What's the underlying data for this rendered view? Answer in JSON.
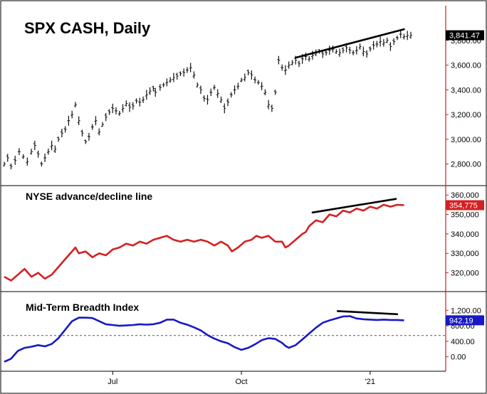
{
  "chart_data": [
    {
      "type": "line",
      "title": "SPX CASH, Daily",
      "y_ticks": [
        "3,800.00",
        "3,600.00",
        "3,400.00",
        "3,200.00",
        "3,000.00",
        "2,800.00"
      ],
      "y_tick_values": [
        3800,
        3600,
        3400,
        3200,
        3000,
        2800
      ],
      "ylim": [
        2700,
        4000
      ],
      "last_value_label": "3,841.47",
      "last_value": 3841.47,
      "style": "ohlc-bars",
      "series": [
        {
          "x": [
            0,
            5,
            10,
            16,
            22,
            28,
            34,
            40,
            45,
            50,
            55,
            60,
            65,
            70,
            75,
            80,
            85,
            90,
            95,
            100,
            105,
            110,
            115,
            120,
            125,
            130,
            135,
            140,
            145,
            150,
            155,
            160,
            165,
            170,
            175,
            180,
            185,
            190,
            195,
            200,
            205,
            210,
            215,
            220,
            223,
            230,
            235,
            240,
            245,
            250,
            255,
            260,
            265,
            270,
            275,
            280,
            285,
            290,
            295,
            300,
            305,
            310,
            315,
            320,
            325,
            330,
            335,
            340,
            345,
            350,
            355,
            360,
            365,
            370,
            375,
            380,
            385,
            390,
            395,
            400,
            405,
            410,
            415,
            420,
            425,
            430,
            435,
            440,
            445,
            450,
            455,
            460,
            465,
            470,
            475,
            480,
            485,
            490,
            495,
            500,
            505,
            510,
            515,
            520,
            525,
            530,
            535,
            540,
            545,
            550,
            555,
            560,
            565,
            570,
            575,
            580,
            585,
            590,
            595,
            600
          ],
          "values": [
            2800,
            2850,
            2780,
            2830,
            2900,
            2860,
            2820,
            2900,
            2950,
            2880,
            2800,
            2850,
            2900,
            2950,
            2920,
            3000,
            3050,
            3080,
            3150,
            3200,
            3280,
            3150,
            3050,
            2980,
            3020,
            3100,
            3150,
            3060,
            3120,
            3180,
            3220,
            3250,
            3230,
            3210,
            3250,
            3290,
            3260,
            3270,
            3310,
            3300,
            3320,
            3360,
            3390,
            3410,
            3380,
            3420,
            3440,
            3460,
            3480,
            3500,
            3510,
            3530,
            3540,
            3560,
            3580,
            3520,
            3440,
            3400,
            3330,
            3320,
            3380,
            3420,
            3370,
            3320,
            3250,
            3300,
            3360,
            3400,
            3430,
            3480,
            3500,
            3540,
            3520,
            3480,
            3460,
            3430,
            3380,
            3280,
            3250,
            3380,
            3640,
            3580,
            3560,
            3600,
            3620,
            3640,
            3610,
            3650,
            3670,
            3650,
            3680,
            3700,
            3710,
            3690,
            3700,
            3720,
            3730,
            3710,
            3700,
            3720,
            3740,
            3720,
            3700,
            3720,
            3750,
            3710,
            3690,
            3730,
            3760,
            3770,
            3790,
            3780,
            3800,
            3750,
            3790,
            3820,
            3850,
            3830,
            3840,
            3841.47
          ]
        }
      ],
      "trendline": {
        "x": [
          430,
          590
        ],
        "y": [
          3660,
          3890
        ]
      }
    },
    {
      "type": "line",
      "title": "NYSE advance/decline line",
      "y_ticks": [
        "360,000",
        "350,000",
        "340,000",
        "330,000",
        "320,000"
      ],
      "y_tick_values": [
        360000,
        350000,
        340000,
        330000,
        320000
      ],
      "ylim": [
        314000,
        363000
      ],
      "last_value_label": "354,775",
      "last_value": 354775,
      "series": [
        {
          "color": "#d42020",
          "x": [
            0,
            10,
            20,
            30,
            40,
            50,
            60,
            70,
            80,
            90,
            100,
            105,
            110,
            120,
            130,
            140,
            150,
            160,
            170,
            180,
            190,
            200,
            210,
            220,
            230,
            240,
            250,
            260,
            270,
            280,
            290,
            300,
            310,
            320,
            330,
            336,
            345,
            355,
            365,
            372,
            380,
            390,
            400,
            410,
            415,
            420,
            430,
            440,
            445,
            450,
            460,
            470,
            480,
            490,
            500,
            510,
            520,
            530,
            540,
            550,
            560,
            570,
            580,
            590
          ],
          "values": [
            318000,
            316000,
            319000,
            322000,
            318000,
            320000,
            317000,
            319000,
            323000,
            327000,
            331000,
            333000,
            330000,
            331000,
            328000,
            330000,
            329000,
            332000,
            333000,
            335000,
            334000,
            336000,
            335000,
            337000,
            338000,
            339000,
            337000,
            336000,
            337000,
            336000,
            337000,
            336000,
            334000,
            336000,
            334000,
            331000,
            333000,
            336000,
            337000,
            339000,
            338000,
            339000,
            336000,
            336000,
            333000,
            334000,
            337000,
            340000,
            341000,
            344000,
            347000,
            346000,
            350000,
            349000,
            352000,
            351000,
            353000,
            352000,
            354000,
            353000,
            355000,
            354000,
            355000,
            354775
          ]
        }
      ],
      "trendline": {
        "x": [
          455,
          578
        ],
        "y": [
          351000,
          358000
        ]
      }
    },
    {
      "type": "line",
      "title": "Mid-Term Breadth Index",
      "y_ticks": [
        "1,200.00",
        "800.00",
        "400.00",
        "0.00"
      ],
      "y_tick_values": [
        1200,
        800,
        400,
        0
      ],
      "ylim": [
        -300,
        1500
      ],
      "reference_line": 550,
      "last_value_label": "942.19",
      "last_value": 942.19,
      "series": [
        {
          "color": "#1818c8",
          "x": [
            0,
            10,
            20,
            30,
            40,
            50,
            60,
            70,
            80,
            90,
            100,
            110,
            120,
            130,
            140,
            150,
            160,
            170,
            180,
            190,
            200,
            210,
            220,
            230,
            240,
            250,
            260,
            270,
            280,
            290,
            300,
            310,
            320,
            330,
            340,
            350,
            360,
            370,
            380,
            390,
            400,
            410,
            415,
            420,
            430,
            440,
            450,
            460,
            470,
            480,
            490,
            500,
            510,
            520,
            530,
            540,
            550,
            560,
            570,
            580,
            590
          ],
          "values": [
            -130,
            -50,
            150,
            230,
            260,
            300,
            270,
            330,
            480,
            700,
            920,
            1010,
            1010,
            1000,
            920,
            840,
            820,
            800,
            810,
            820,
            840,
            830,
            840,
            880,
            960,
            960,
            880,
            830,
            760,
            680,
            560,
            470,
            400,
            350,
            250,
            180,
            230,
            320,
            430,
            480,
            460,
            360,
            280,
            230,
            300,
            450,
            600,
            750,
            880,
            940,
            990,
            1040,
            1050,
            990,
            970,
            960,
            950,
            960,
            950,
            950,
            942.19
          ]
        }
      ],
      "trendline": {
        "x": [
          492,
          580
        ],
        "y": [
          1180,
          1100
        ]
      }
    }
  ],
  "x_axis": {
    "ticks": [
      "Jul",
      "Oct",
      "'21"
    ],
    "tick_positions": [
      160,
      350,
      540
    ],
    "xlim": [
      0,
      620
    ]
  }
}
